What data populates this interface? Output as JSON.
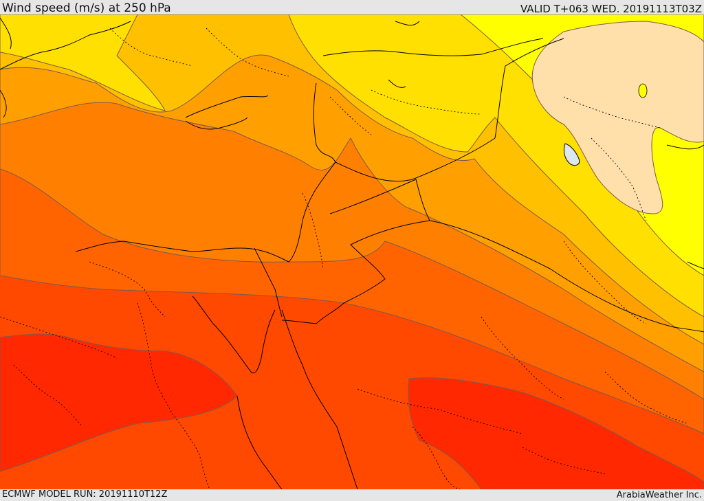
{
  "header": {
    "title": "Wind speed (m/s) at 250 hPa",
    "valid": "VALID T+063 WED. 20191113T03Z"
  },
  "footer": {
    "model_run": "ECMWF MODEL RUN: 20191110T12Z",
    "credit": "ArabiaWeather Inc."
  },
  "map": {
    "field": "wind speed",
    "colors": {
      "band_1": "#ffdfaa",
      "band_2": "#ffff00",
      "band_3": "#ffe000",
      "band_4": "#ffc000",
      "band_5": "#ffa000",
      "band_6": "#ff8000",
      "band_7": "#ff6400",
      "band_8": "#ff4800",
      "band_9": "#ff2800",
      "sea_patch": "#dde8ee",
      "contour": "#7a5a50",
      "border": "#000000"
    }
  }
}
